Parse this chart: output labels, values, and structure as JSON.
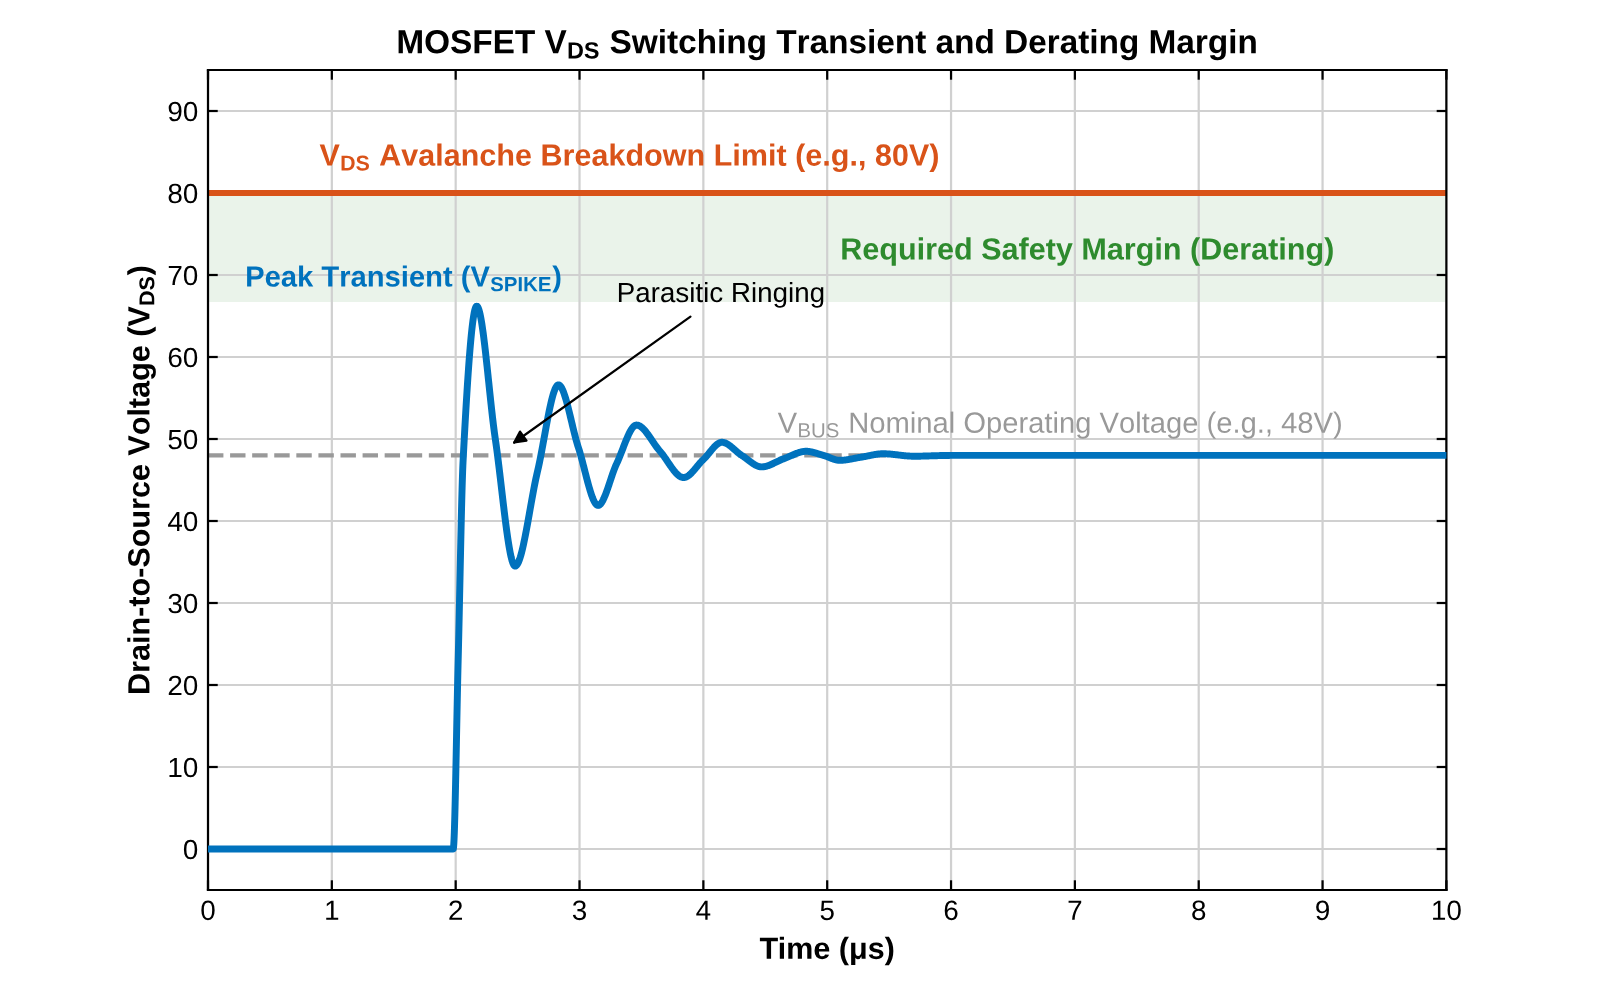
{
  "chart_data": {
    "type": "line",
    "title": "MOSFET V$_{DS}$ Switching Transient and Derating Margin",
    "xlabel": "Time (μs)",
    "ylabel": "Drain-to-Source Voltage (V$_{DS}$)",
    "series": [
      {
        "color": "#0072bd",
        "x": [
          0,
          1.98,
          2.02,
          2.06,
          2.17,
          2.32,
          2.48,
          2.66,
          2.83,
          2.99,
          3.15,
          3.3,
          3.46,
          3.65,
          3.84,
          4.0,
          4.15,
          4.31,
          4.47,
          4.65,
          4.83,
          4.97,
          5.1,
          5.28,
          5.45,
          5.7,
          6.0,
          7.0,
          8.0,
          9.0,
          10.0
        ],
        "values": [
          0,
          0,
          23,
          47.4,
          66.2,
          50,
          34.5,
          46,
          56.6,
          49,
          41.9,
          47,
          51.7,
          48.5,
          45.3,
          47.5,
          49.6,
          48,
          46.6,
          47.6,
          48.5,
          48,
          47.4,
          47.8,
          48.2,
          47.9,
          48,
          48,
          48,
          48,
          48
        ]
      }
    ],
    "xlim": [
      0,
      10
    ],
    "ylim": [
      -5,
      95
    ],
    "xticks": [
      0,
      1,
      2,
      3,
      4,
      5,
      6,
      7,
      8,
      9,
      10
    ],
    "yticks": [
      0,
      10,
      20,
      30,
      40,
      50,
      60,
      70,
      80,
      90
    ],
    "grid": true,
    "legend": false,
    "line_style": "solid",
    "marker": "none",
    "ref_lines": [
      {
        "axis": "y",
        "value": 80,
        "label": "V$_{DS}$ Avalanche Breakdown Limit (e.g., 80V)",
        "color": "#d95319",
        "line_style": "solid"
      },
      {
        "axis": "y",
        "value": 48,
        "label": "V$_{BUS}$ Nominal Operating Voltage (e.g., 48V)",
        "color": "#999999",
        "line_style": "dashed"
      }
    ],
    "bands": [
      {
        "axis": "y",
        "from": 66.7,
        "to": 80,
        "label": "Required Safety Margin (Derating)",
        "color": "#2e8b2e"
      }
    ],
    "annotations": [
      "Peak Transient (V$_{SPIKE}$)",
      "Parasitic Ringing"
    ]
  }
}
